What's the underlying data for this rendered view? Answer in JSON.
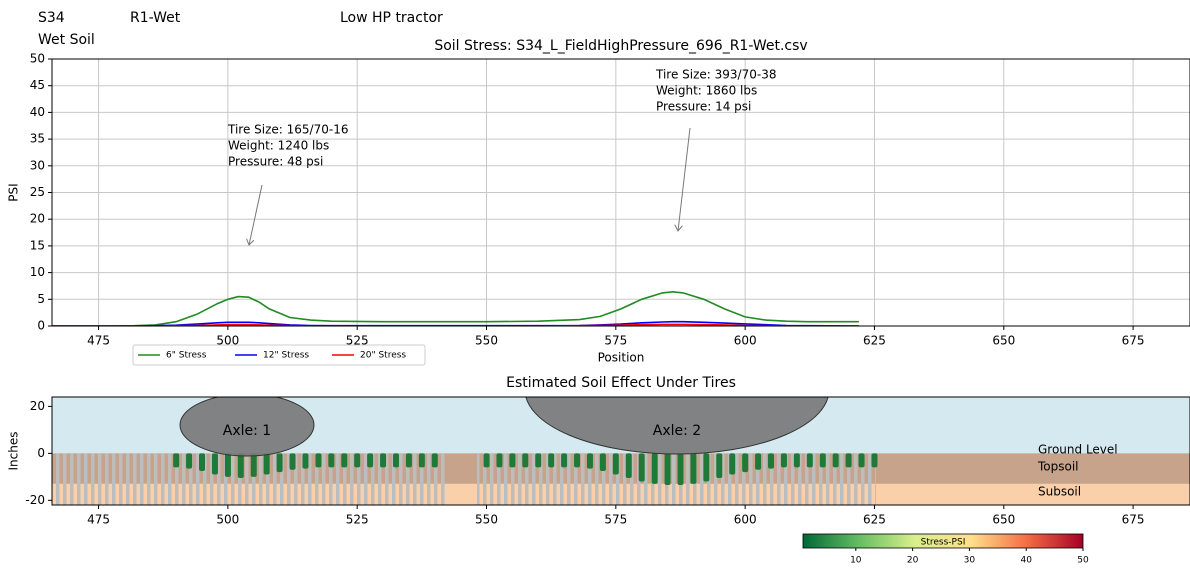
{
  "header": {
    "cells": [
      "S34",
      "R1-Wet",
      "Low HP tractor",
      "Wet Soil"
    ]
  },
  "chart_data": [
    {
      "type": "line",
      "title": "Soil Stress: S34_L_FieldHighPressure_696_R1-Wet.csv",
      "xlabel": "Position",
      "ylabel": "PSI",
      "xlim": [
        466,
        686
      ],
      "xticks": [
        475,
        500,
        525,
        550,
        575,
        600,
        625,
        650,
        675
      ],
      "ylim": [
        0,
        50
      ],
      "yticks": [
        0,
        5,
        10,
        15,
        20,
        25,
        30,
        35,
        40,
        45,
        50
      ],
      "grid": true,
      "x": [
        466,
        470,
        474,
        478,
        482,
        486,
        490,
        494,
        498,
        500,
        502,
        504,
        506,
        508,
        512,
        516,
        520,
        530,
        540,
        550,
        560,
        568,
        572,
        576,
        580,
        584,
        586,
        588,
        592,
        596,
        600,
        604,
        608,
        612,
        616,
        622
      ],
      "series": [
        {
          "name": "6\" Stress",
          "color": "#228b22",
          "values": [
            0,
            0,
            0,
            0,
            0.05,
            0.2,
            0.8,
            2.2,
            4.2,
            5.0,
            5.5,
            5.4,
            4.5,
            3.2,
            1.6,
            1.1,
            0.9,
            0.8,
            0.8,
            0.8,
            0.9,
            1.2,
            1.8,
            3.2,
            5.0,
            6.2,
            6.4,
            6.2,
            5.0,
            3.2,
            1.7,
            1.1,
            0.9,
            0.8,
            0.8,
            0.8
          ]
        },
        {
          "name": "12\" Stress",
          "color": "#0000ff",
          "values": [
            0,
            0,
            0,
            0,
            0,
            0.05,
            0.15,
            0.35,
            0.6,
            0.7,
            0.7,
            0.7,
            0.6,
            0.45,
            0.2,
            0.1,
            0.05,
            0.05,
            0.05,
            0.05,
            0.05,
            0.1,
            0.2,
            0.35,
            0.6,
            0.75,
            0.8,
            0.8,
            0.7,
            0.55,
            0.4,
            0.25,
            0.1,
            0.05,
            0.03,
            0
          ]
        },
        {
          "name": "20\" Stress",
          "color": "#ff0000",
          "values": [
            0,
            0,
            0,
            0,
            0,
            0,
            0.05,
            0.1,
            0.2,
            0.25,
            0.25,
            0.25,
            0.2,
            0.15,
            0.05,
            0,
            0,
            0,
            0,
            0,
            0,
            0.05,
            0.1,
            0.15,
            0.25,
            0.3,
            0.3,
            0.3,
            0.25,
            0.2,
            0.1,
            0.05,
            0,
            0,
            0,
            0
          ]
        }
      ],
      "annotations": [
        {
          "lines": [
            "Tire Size: 165/70-16",
            "Weight: 1240 lbs",
            "Pressure: 48 psi"
          ]
        },
        {
          "lines": [
            "Tire Size: 393/70-38",
            "Weight: 1860 lbs",
            "Pressure: 14 psi"
          ]
        }
      ]
    },
    {
      "type": "soil",
      "title": "Estimated Soil Effect Under Tires",
      "ylabel": "Inches",
      "xlim": [
        466,
        686
      ],
      "xticks": [
        475,
        500,
        525,
        550,
        575,
        600,
        625,
        650,
        675
      ],
      "ylim": [
        -22,
        24
      ],
      "yticks": [
        -20,
        0,
        20
      ],
      "background": "#d4eaf0",
      "color": "#1f7a3a",
      "layers": [
        {
          "label": "Ground Level"
        },
        {
          "label": "Topsoil",
          "color": "#c6a38a",
          "from": 0,
          "to": -13
        },
        {
          "label": "Subsoil",
          "color": "#f9d0aa",
          "from": -13,
          "to": -22
        }
      ],
      "axles": [
        "Axle: 1",
        "Axle: 2"
      ],
      "x": [
        490,
        492.5,
        495,
        497.5,
        500,
        502.5,
        505,
        507.5,
        510,
        512.5,
        515,
        517.5,
        520,
        522.5,
        525,
        527.5,
        530,
        532.5,
        535,
        537.5,
        540,
        550,
        552.5,
        555,
        557.5,
        560,
        562.5,
        565,
        567.5,
        570,
        572.5,
        575,
        577.5,
        580,
        582.5,
        585,
        587.5,
        590,
        592.5,
        595,
        597.5,
        600,
        602.5,
        605,
        607.5,
        610,
        612.5,
        615,
        617.5,
        620,
        622.5,
        625
      ],
      "values": [
        -6,
        -6.5,
        -7.5,
        -9,
        -10,
        -10.5,
        -10,
        -9,
        -8,
        -7,
        -6.5,
        -6,
        -6,
        -6,
        -6,
        -6,
        -6,
        -6,
        -6,
        -6,
        -6,
        -6,
        -6,
        -6,
        -6,
        -6,
        -6,
        -6,
        -6,
        -6.5,
        -7.5,
        -9,
        -10.5,
        -12,
        -13,
        -13.5,
        -13.5,
        -13,
        -12,
        -10.5,
        -9,
        -8,
        -7,
        -6.5,
        -6,
        -6,
        -6,
        -6,
        -6,
        -6,
        -6,
        -6
      ],
      "colorbar": {
        "label": "Stress-PSI",
        "lim": [
          0.7,
          50
        ],
        "ticks": [
          10,
          20,
          30,
          40,
          50
        ]
      }
    }
  ]
}
